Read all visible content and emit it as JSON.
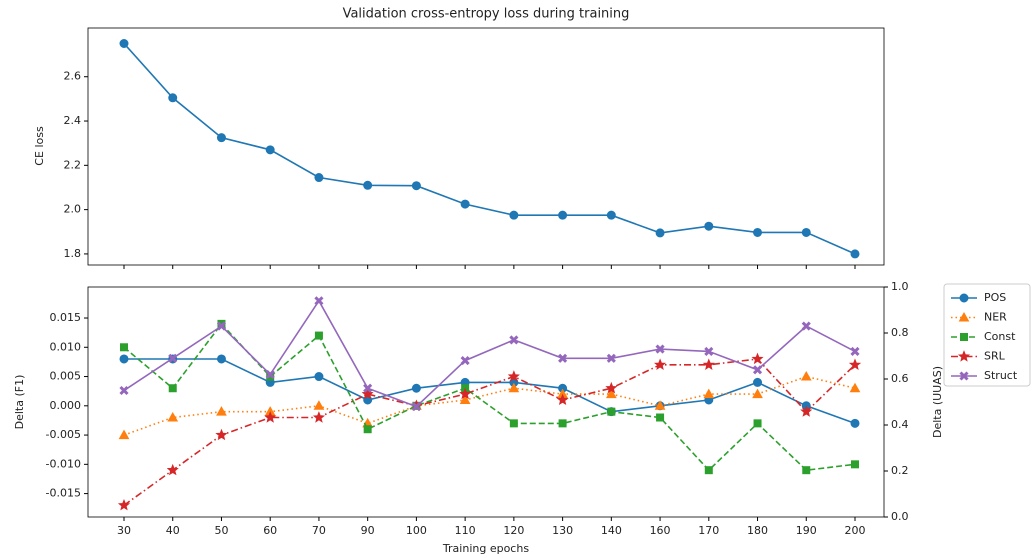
{
  "chart_data": [
    {
      "type": "line",
      "title": "Validation cross-entropy loss during training",
      "y_label": "CE loss",
      "series": [
        {
          "name": "CE loss",
          "color": "#1f77b4",
          "linestyle": "solid",
          "marker": "circle",
          "values": [
            2.75,
            2.505,
            2.325,
            2.27,
            2.145,
            2.11,
            2.108,
            2.025,
            1.975,
            1.975,
            1.975,
            1.895,
            1.925,
            1.897,
            1.897,
            1.8
          ]
        }
      ],
      "ylim": [
        1.75,
        2.82
      ],
      "yticks": [
        1.8,
        {
          "value": 2.0,
          "label": "2.0"
        },
        2.2,
        2.4,
        2.6
      ],
      "grid": false
    },
    {
      "type": "line",
      "x_label": "Training epochs",
      "y_label": "Delta (F1)",
      "y2_label": "Delta (UUAS)",
      "categories": [
        30,
        40,
        50,
        60,
        70,
        90,
        100,
        110,
        120,
        130,
        140,
        160,
        170,
        180,
        190,
        200
      ],
      "series": [
        {
          "name": "POS",
          "color": "#1f77b4",
          "linestyle": "solid",
          "marker": "circle",
          "values": [
            0.008,
            0.008,
            0.008,
            0.004,
            0.005,
            0.001,
            0.003,
            0.004,
            0.004,
            0.003,
            -0.001,
            0.0,
            0.001,
            0.004,
            0.0,
            -0.003
          ]
        },
        {
          "name": "NER",
          "color": "#ff7f0e",
          "linestyle": "dotted",
          "marker": "triangle",
          "values": [
            -0.005,
            -0.002,
            -0.001,
            -0.001,
            0.0,
            -0.003,
            0.0,
            0.001,
            0.003,
            0.002,
            0.002,
            0.0,
            0.002,
            0.002,
            0.005,
            0.003
          ]
        },
        {
          "name": "Const",
          "color": "#2ca02c",
          "linestyle": "dashed",
          "marker": "square",
          "values": [
            0.01,
            0.003,
            0.014,
            0.005,
            0.012,
            -0.004,
            0.0,
            0.003,
            -0.003,
            -0.003,
            -0.001,
            -0.002,
            -0.011,
            -0.003,
            -0.011,
            -0.01
          ]
        },
        {
          "name": "SRL",
          "color": "#d62728",
          "linestyle": "dashdot",
          "marker": "star",
          "values": [
            -0.017,
            -0.011,
            -0.005,
            -0.002,
            -0.002,
            0.002,
            0.0,
            0.002,
            0.005,
            0.001,
            0.003,
            0.007,
            0.007,
            0.008,
            -0.001,
            0.007
          ]
        },
        {
          "name": "Struct",
          "color": "#9467bd",
          "linestyle": "solid",
          "marker": "x",
          "axis": "y2",
          "values": [
            0.55,
            0.69,
            0.83,
            0.62,
            0.94,
            0.56,
            0.48,
            0.68,
            0.77,
            0.69,
            0.69,
            0.73,
            0.72,
            0.64,
            0.83,
            0.72
          ]
        }
      ],
      "ylim": [
        -0.019,
        0.0203
      ],
      "yticks": [
        -0.015,
        {
          "value": -0.01,
          "label": "-0.010"
        },
        -0.005,
        {
          "value": 0.0,
          "label": "0.000"
        },
        0.005,
        {
          "value": 0.01,
          "label": "0.010"
        },
        0.015
      ],
      "y2lim": [
        0,
        1
      ],
      "y2ticks": [
        {
          "value": 0,
          "label": "0.0"
        },
        0.2,
        0.4,
        0.6,
        0.8,
        {
          "value": 1,
          "label": "1.0"
        }
      ],
      "legend": "outside right",
      "grid": false
    }
  ]
}
